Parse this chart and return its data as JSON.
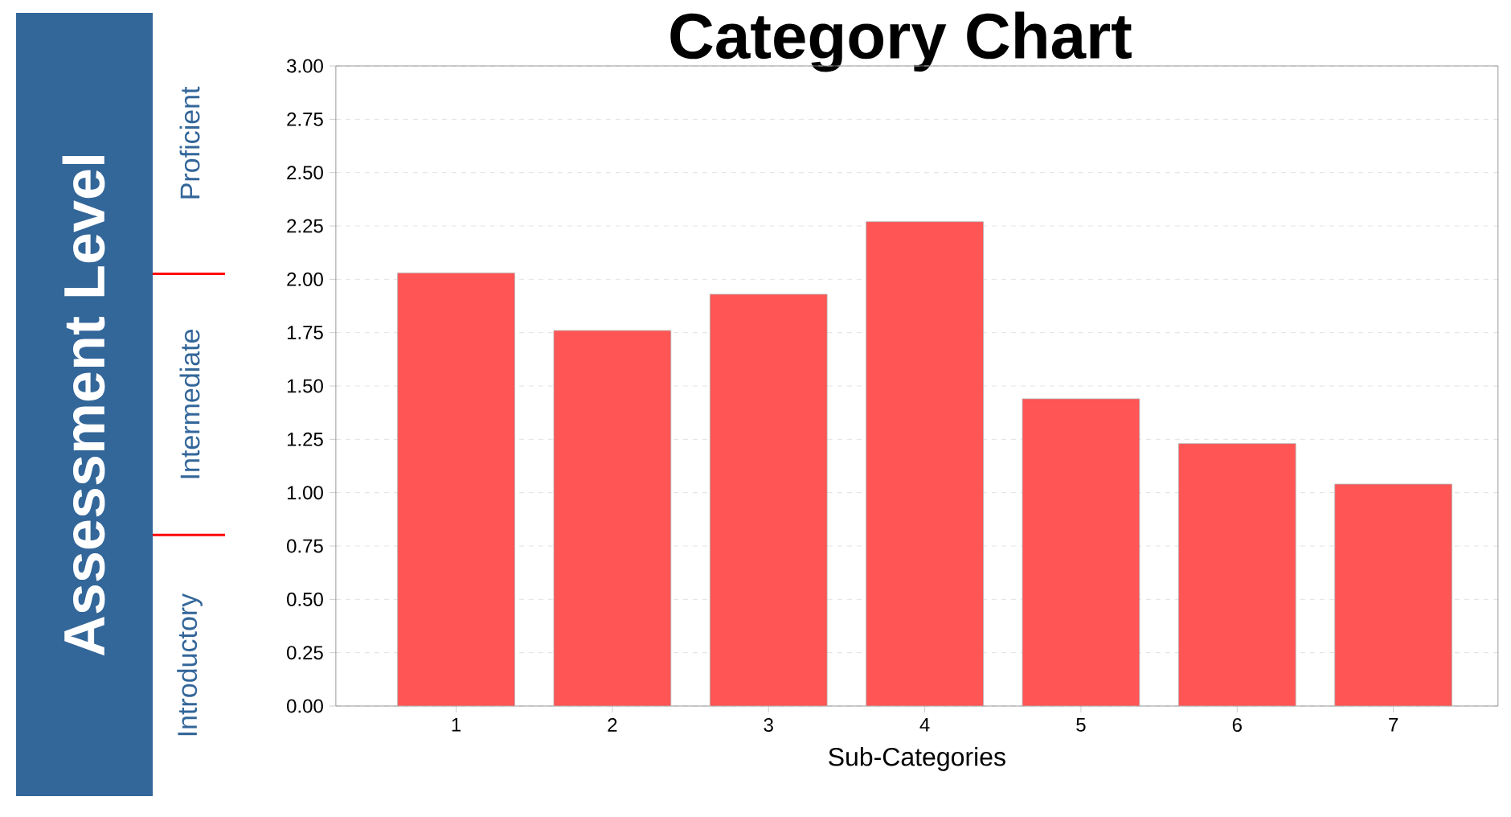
{
  "chart_data": {
    "type": "bar",
    "title": "Category Chart",
    "xlabel": "Sub-Categories",
    "ylabel": "Assessment Level",
    "categories": [
      "1",
      "2",
      "3",
      "4",
      "5",
      "6",
      "7"
    ],
    "values": [
      2.03,
      1.76,
      1.93,
      2.27,
      1.44,
      1.23,
      1.04
    ],
    "color": "#ff5555",
    "ylim": [
      0,
      3
    ],
    "yticks": [
      {
        "value": 0,
        "label": "0.00"
      },
      {
        "value": 0.25,
        "label": "0.25"
      },
      {
        "value": 0.5,
        "label": "0.50"
      },
      {
        "value": 0.75,
        "label": "0.75"
      },
      {
        "value": 1,
        "label": "1.00"
      },
      {
        "value": 1.25,
        "label": "1.25"
      },
      {
        "value": 1.5,
        "label": "1.50"
      },
      {
        "value": 1.75,
        "label": "1.75"
      },
      {
        "value": 2,
        "label": "2.00"
      },
      {
        "value": 2.25,
        "label": "2.25"
      },
      {
        "value": 2.5,
        "label": "2.50"
      },
      {
        "value": 2.75,
        "label": "2.75"
      },
      {
        "value": 3,
        "label": "3.00"
      }
    ],
    "grid": "y",
    "annotations": [
      "Introductory",
      "Intermediate",
      "Proficient"
    ]
  }
}
